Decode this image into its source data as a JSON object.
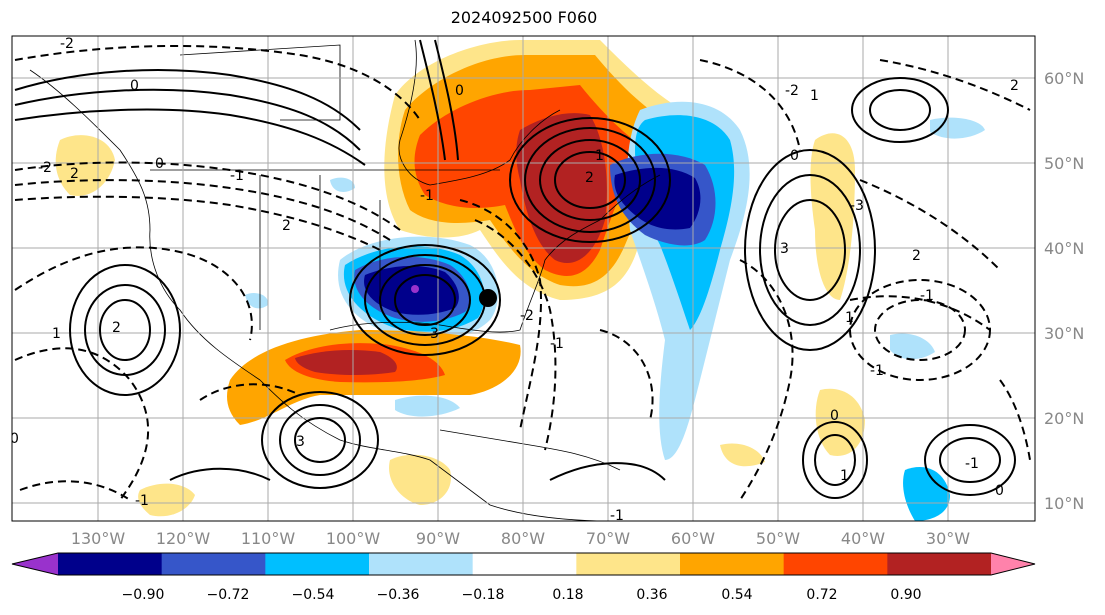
{
  "title": "2024092500 F060",
  "map": {
    "lon_labels": [
      "130°W",
      "120°W",
      "110°W",
      "100°W",
      "90°W",
      "80°W",
      "70°W",
      "60°W",
      "50°W",
      "40°W",
      "30°W"
    ],
    "lat_labels": [
      "60°N",
      "50°N",
      "40°N",
      "30°N",
      "20°N",
      "10°N"
    ],
    "contour_labels": [
      "-2",
      "0",
      "-2",
      "2",
      "0",
      "-1",
      "1",
      "2",
      "3",
      "-1",
      "0",
      "2",
      "0",
      "-1",
      "-2",
      "1",
      "2",
      "3",
      "-1",
      "-2",
      "1",
      "0",
      "-3",
      "1",
      "3",
      "-1",
      "0",
      "-1",
      "2",
      "0",
      "-1",
      "1",
      "2",
      "-1"
    ]
  },
  "colorbar": {
    "ticks": [
      "−0.90",
      "−0.72",
      "−0.54",
      "−0.36",
      "−0.18",
      "0.18",
      "0.36",
      "0.54",
      "0.72",
      "0.90"
    ],
    "colors": [
      "#9932cc",
      "#00008b",
      "#3656c9",
      "#00bfff",
      "#afe2fb",
      "#ffffff",
      "#fee58a",
      "#ffa500",
      "#ff4500",
      "#b22222",
      "#ff82ab"
    ]
  }
}
